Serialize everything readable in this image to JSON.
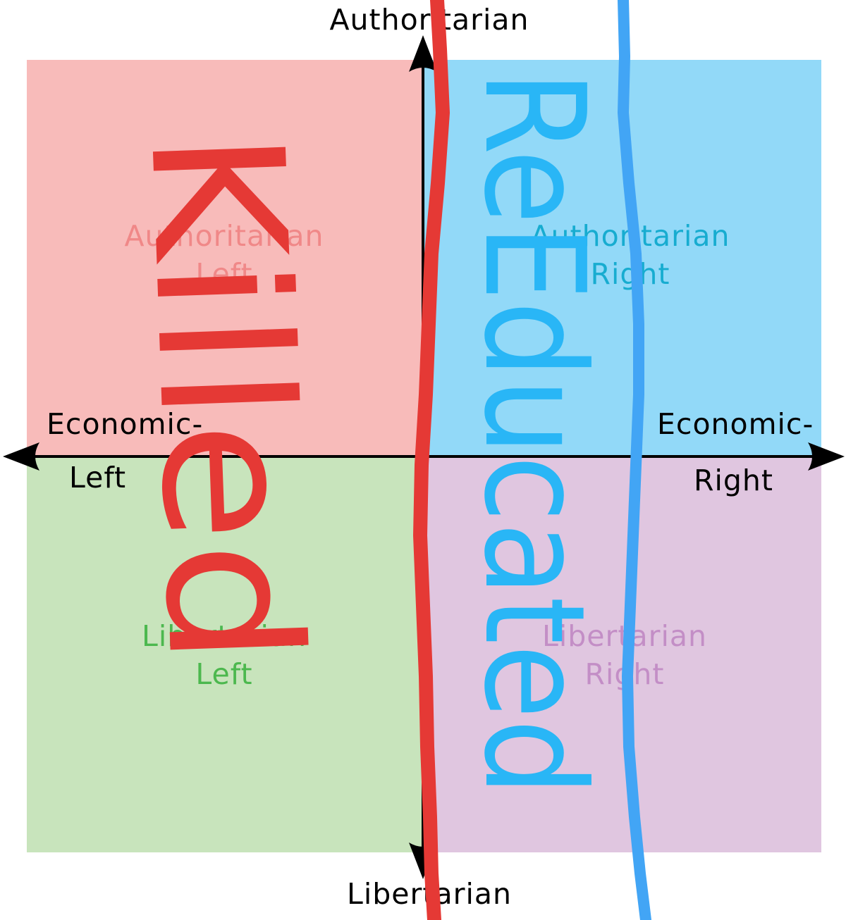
{
  "colors": {
    "authoritarian_left_fill": "#f8bbba",
    "authoritarian_right_fill": "#92d9f8",
    "libertarian_left_fill": "#c8e4bc",
    "libertarian_right_fill": "#e0c6e0",
    "authoritarian_left_text": "#f08888",
    "authoritarian_right_text": "#17acd0",
    "libertarian_left_text": "#4cb84e",
    "libertarian_right_text": "#c38ec6",
    "axis": "#000000",
    "killed_red": "#e53935",
    "reeducated_blue": "#29b6f6",
    "red_line": "#e53935",
    "blue_line": "#42a5f5"
  },
  "axes": {
    "top_label": "Authoritarian",
    "bottom_label": "Libertarian",
    "left_label_line1": "Economic-",
    "left_label_line2": "Left",
    "right_label_line1": "Economic-",
    "right_label_line2": "Right"
  },
  "quadrants": {
    "authoritarian_left": {
      "line1": "Authoritarian",
      "line2": "Left"
    },
    "authoritarian_right": {
      "line1": "Authoritarian",
      "line2": "Right"
    },
    "libertarian_left": {
      "line1": "Libertarian",
      "line2": "Left"
    },
    "libertarian_right": {
      "line1": "Libertarian",
      "line2": "Right"
    }
  },
  "overlay": {
    "left_word": "Killed",
    "right_word": "ReEducated"
  }
}
